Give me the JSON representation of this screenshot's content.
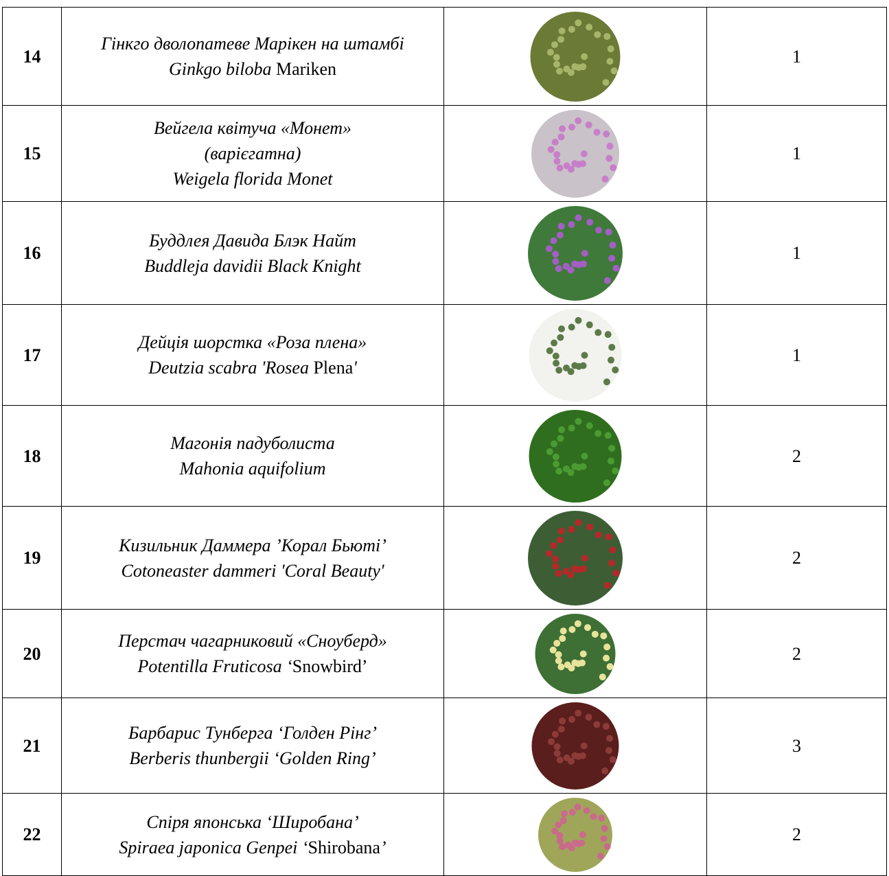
{
  "table": {
    "rows": [
      {
        "number": "14",
        "name": [
          [
            {
              "text": "Гінкго дволопатеве Марікен на штамбі",
              "italic": true
            }
          ],
          [
            {
              "text": "Ginkgo biloba",
              "italic": true
            },
            {
              "text": " Mariken",
              "italic": false
            }
          ]
        ],
        "quantity": "1"
      },
      {
        "number": "15",
        "name": [
          [
            {
              "text": "Вейгела квітуча «Монет»",
              "italic": true
            }
          ],
          [
            {
              "text": "(варієгатна)",
              "italic": true
            }
          ],
          [
            {
              "text": "Weigela florida Monet",
              "italic": true
            }
          ]
        ],
        "quantity": "1"
      },
      {
        "number": "16",
        "name": [
          [
            {
              "text": "Буддлея Давида Блэк Найт",
              "italic": true
            }
          ],
          [
            {
              "text": "Buddleja davidii Black Knight",
              "italic": true
            }
          ]
        ],
        "quantity": "1"
      },
      {
        "number": "17",
        "name": [
          [
            {
              "text": "Дейція шорстка «Роза плена»",
              "italic": true
            }
          ],
          [
            {
              "text": "Deutzia scabra 'Rosea",
              "italic": true
            },
            {
              "text": " Plena",
              "italic": false
            },
            {
              "text": "'",
              "italic": true
            }
          ]
        ],
        "quantity": "1"
      },
      {
        "number": "18",
        "name": [
          [
            {
              "text": "Магонія падуболиста",
              "italic": true
            }
          ],
          [
            {
              "text": "Mahonia aquifolium",
              "italic": true
            }
          ]
        ],
        "quantity": "2"
      },
      {
        "number": "19",
        "name": [
          [
            {
              "text": "Кизильник Даммера ’Корал Бьюті’",
              "italic": true
            }
          ],
          [
            {
              "text": "Cotoneaster dammeri 'Coral Beauty'",
              "italic": true
            }
          ]
        ],
        "quantity": "2"
      },
      {
        "number": "20",
        "name": [
          [
            {
              "text": "Перстач чагарниковий  «Сноуберд»",
              "italic": true
            }
          ],
          [
            {
              "text": "Potentilla Fruticosa",
              "italic": true
            },
            {
              "text": " ‘",
              "italic": true
            },
            {
              "text": "Snowbird’",
              "italic": false
            }
          ]
        ],
        "quantity": "2"
      },
      {
        "number": "21",
        "name": [
          [
            {
              "text": "Барбарис Тунберга ‘Голден Рінг’",
              "italic": true
            }
          ],
          [
            {
              "text": "Berberis thunbergii ‘Golden Ring’",
              "italic": true
            }
          ]
        ],
        "quantity": "3"
      },
      {
        "number": "22",
        "name": [
          [
            {
              "text": "Спіря японська ‘Широбана’",
              "italic": true
            }
          ],
          [
            {
              "text": "Spiraea japonica Genpei ‘",
              "italic": true
            },
            {
              "text": "Shirobana",
              "italic": false
            },
            {
              "text": "’",
              "italic": true
            }
          ]
        ],
        "quantity": "2"
      }
    ]
  }
}
